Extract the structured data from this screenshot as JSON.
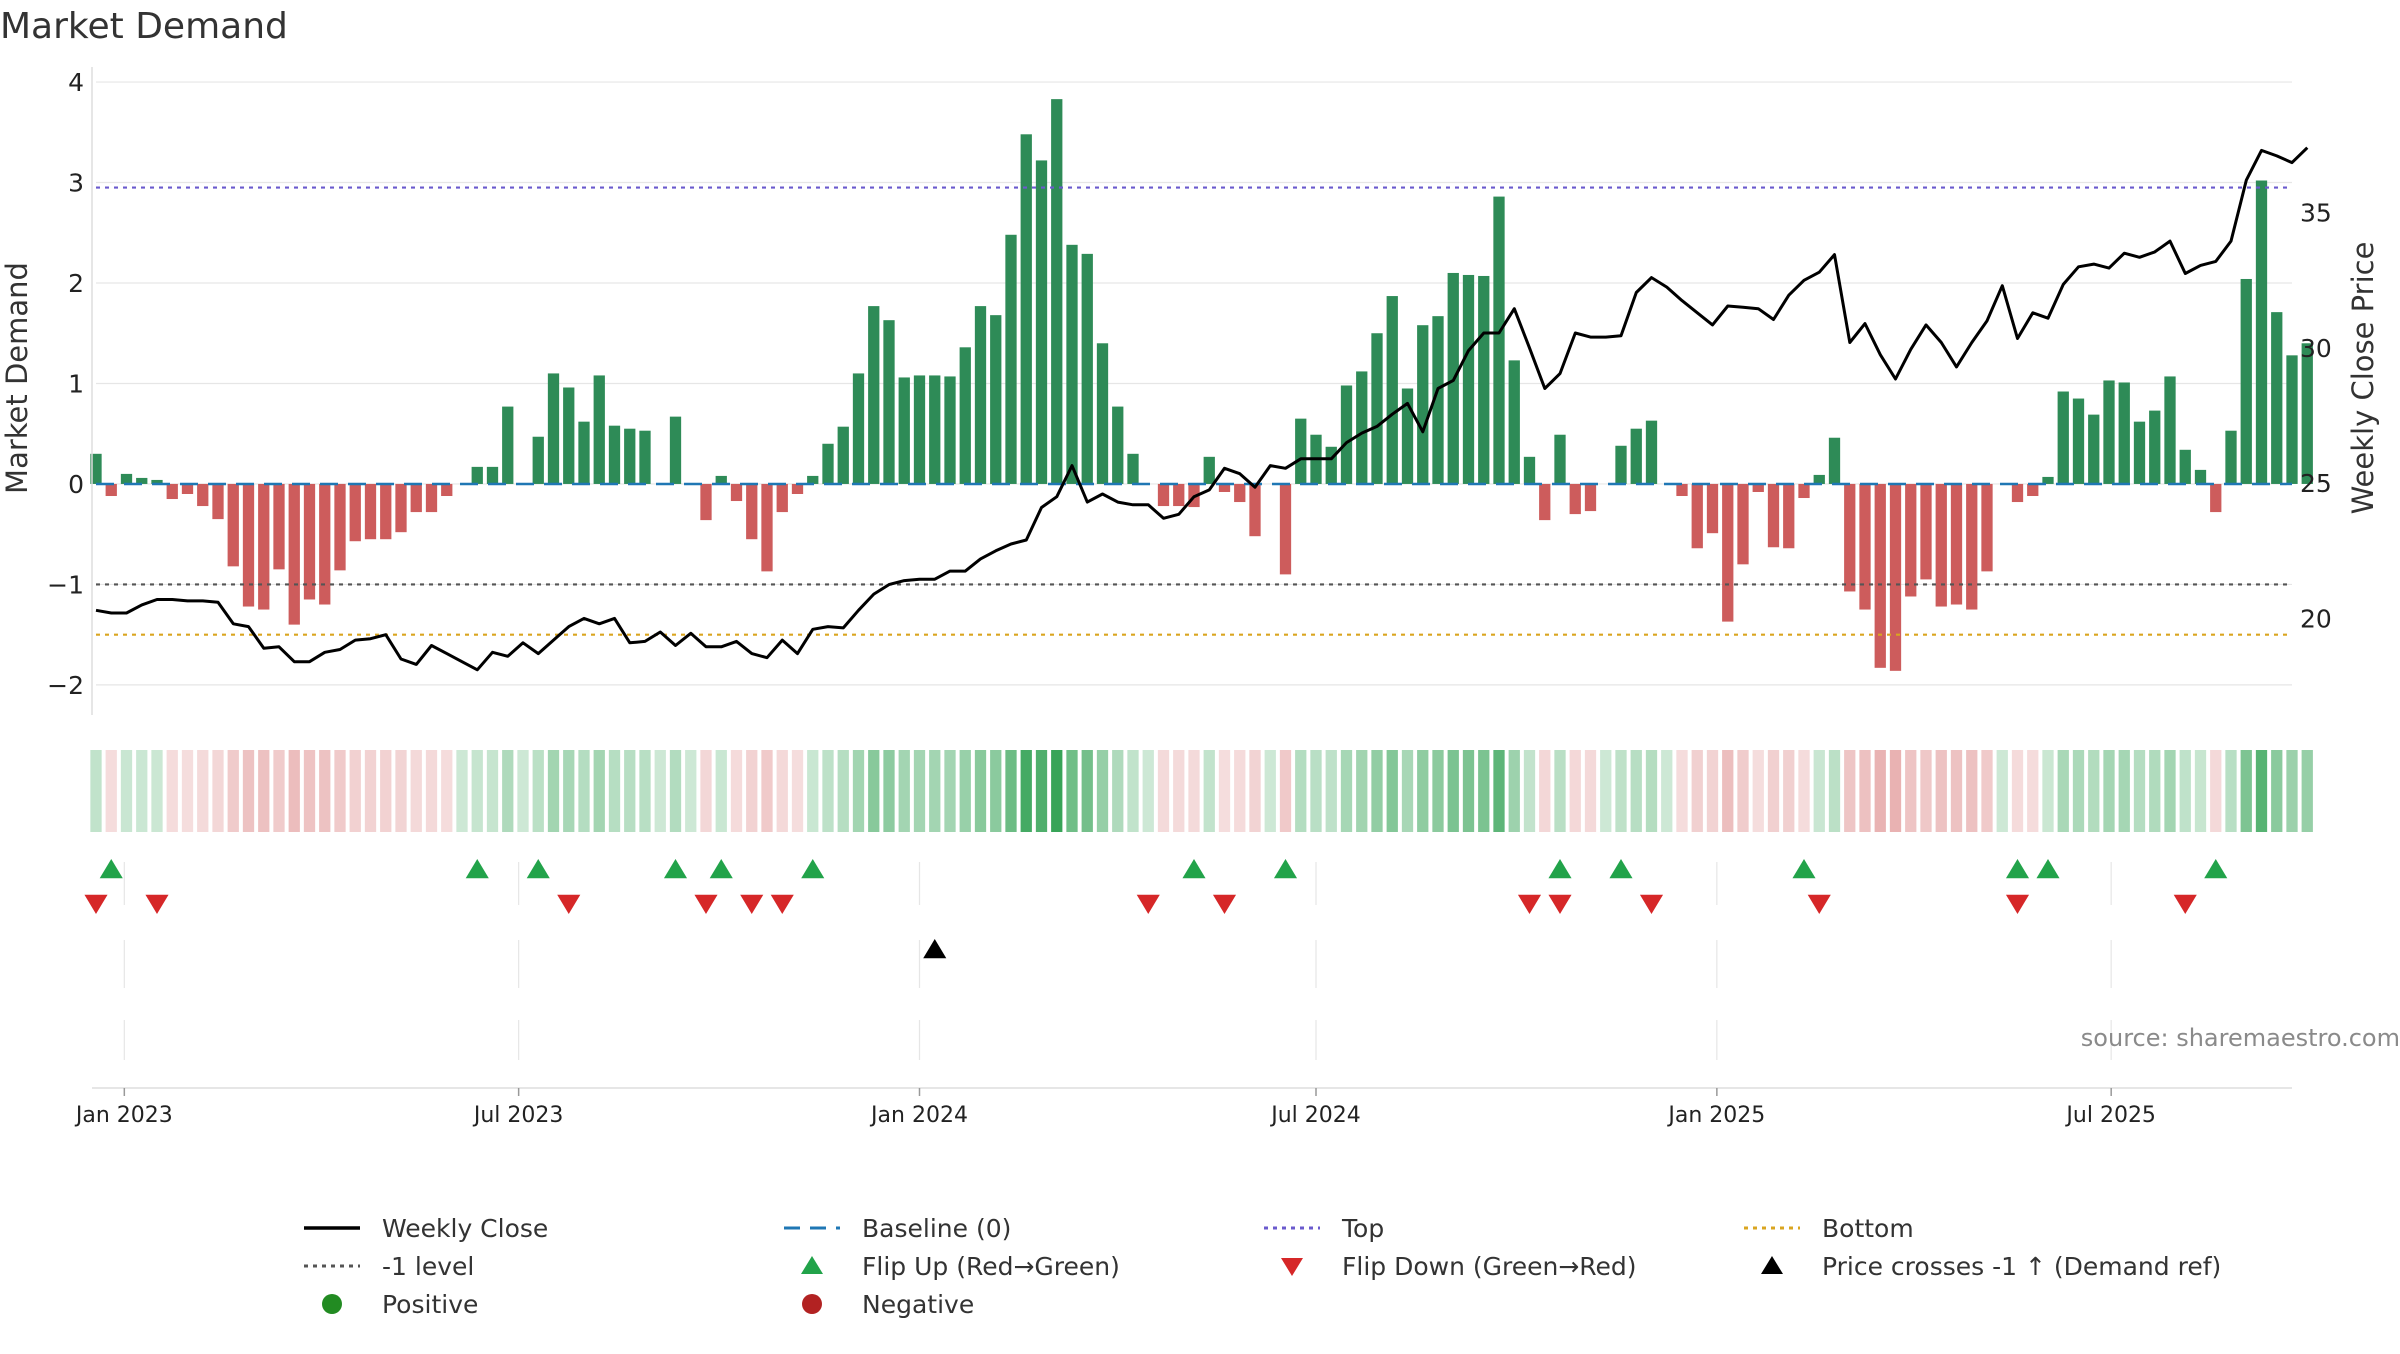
{
  "chart_data": {
    "type": "bar",
    "title": "Market Demand",
    "ylabel": "Market Demand",
    "y2label": "Weekly Close Price",
    "ylim": [
      -2.2,
      4.1
    ],
    "y2lim": [
      16.8,
      40.2
    ],
    "yticks": [
      4,
      3,
      2,
      1,
      0,
      -1,
      -2
    ],
    "ytick_labels": [
      "4",
      "3",
      "2",
      "1",
      "0",
      "−1",
      "−2"
    ],
    "y2ticks": [
      35,
      30,
      25,
      20
    ],
    "y2tick_labels": [
      "35",
      "30",
      "25",
      "20"
    ],
    "top_level": 2.95,
    "bottom_level": -1.5,
    "ref_level": -1,
    "x_start": "2022-12-19",
    "x_end": "2025-09-22",
    "xticks": [
      "2023-01-01",
      "2023-07-01",
      "2024-01-01",
      "2024-07-01",
      "2025-01-01",
      "2025-07-01"
    ],
    "xtick_labels": [
      "Jan 2023",
      "Jul 2023",
      "Jan 2024",
      "Jul 2024",
      "Jan 2025",
      "Jul 2025"
    ],
    "start_date": "2022-12-19",
    "demand": [
      0.3,
      -0.12,
      0.1,
      0.06,
      0.04,
      -0.15,
      -0.1,
      -0.22,
      -0.35,
      -0.82,
      -1.22,
      -1.25,
      -0.85,
      -1.4,
      -1.15,
      -1.2,
      -0.86,
      -0.57,
      -0.55,
      -0.55,
      -0.48,
      -0.28,
      -0.28,
      -0.12,
      0,
      0.17,
      0.17,
      0.77,
      0,
      0.47,
      1.1,
      0.96,
      0.62,
      1.08,
      0.58,
      0.55,
      0.53,
      0,
      0.67,
      0,
      -0.36,
      0.08,
      -0.17,
      -0.55,
      -0.87,
      -0.28,
      -0.1,
      0.08,
      0.4,
      0.57,
      1.1,
      1.77,
      1.63,
      1.06,
      1.08,
      1.08,
      1.07,
      1.36,
      1.77,
      1.68,
      2.48,
      3.48,
      3.22,
      3.83,
      2.38,
      2.29,
      1.4,
      0.77,
      0.3,
      0,
      -0.22,
      -0.22,
      -0.23,
      0.27,
      -0.08,
      -0.18,
      -0.52,
      0,
      -0.9,
      0.65,
      0.49,
      0.37,
      0.98,
      1.12,
      1.5,
      1.87,
      0.95,
      1.58,
      1.67,
      2.1,
      2.08,
      2.07,
      2.86,
      1.23,
      0.27,
      -0.36,
      0.49,
      -0.3,
      -0.27,
      0,
      0.38,
      0.55,
      0.63,
      0,
      -0.12,
      -0.64,
      -0.49,
      -1.37,
      -0.8,
      -0.08,
      -0.63,
      -0.64,
      -0.14,
      0.09,
      0.46,
      -1.07,
      -1.25,
      -1.83,
      -1.86,
      -1.12,
      -0.95,
      -1.22,
      -1.2,
      -1.25,
      -0.87,
      0,
      -0.18,
      -0.12,
      0.07,
      0.92,
      0.85,
      0.69,
      1.03,
      1.01,
      0.62,
      0.73,
      1.07,
      0.34,
      0.14,
      -0.28,
      0.53,
      2.04,
      3.02,
      1.71,
      1.28,
      1.4
    ],
    "close": [
      20.3,
      20.2,
      20.2,
      20.5,
      20.7,
      20.7,
      20.65,
      20.65,
      20.6,
      19.8,
      19.7,
      18.9,
      18.95,
      18.4,
      18.4,
      18.75,
      18.85,
      19.2,
      19.25,
      19.4,
      18.5,
      18.3,
      19.0,
      18.7,
      18.4,
      18.1,
      18.75,
      18.6,
      19.1,
      18.7,
      19.2,
      19.7,
      20.0,
      19.8,
      20.0,
      19.1,
      19.15,
      19.5,
      19.0,
      19.45,
      18.95,
      18.95,
      19.15,
      18.7,
      18.55,
      19.2,
      18.7,
      19.6,
      19.7,
      19.65,
      20.3,
      20.9,
      21.25,
      21.4,
      21.45,
      21.45,
      21.75,
      21.75,
      22.2,
      22.5,
      22.75,
      22.9,
      24.1,
      24.5,
      25.65,
      24.3,
      24.6,
      24.3,
      24.2,
      24.2,
      23.7,
      23.85,
      24.5,
      24.75,
      25.55,
      25.35,
      24.85,
      25.65,
      25.55,
      25.9,
      25.9,
      25.9,
      26.5,
      26.85,
      27.1,
      27.55,
      27.95,
      26.9,
      28.5,
      28.8,
      29.9,
      30.55,
      30.55,
      31.45,
      30.0,
      28.5,
      29.05,
      30.55,
      30.4,
      30.4,
      30.45,
      32.05,
      32.6,
      32.25,
      31.75,
      31.3,
      30.85,
      31.55,
      31.5,
      31.45,
      31.05,
      31.95,
      32.5,
      32.8,
      33.45,
      30.2,
      30.9,
      29.75,
      28.85,
      29.95,
      30.85,
      30.2,
      29.3,
      30.2,
      31.0,
      32.3,
      30.35,
      31.3,
      31.1,
      32.35,
      33.0,
      33.1,
      32.95,
      33.5,
      33.35,
      33.55,
      33.95,
      32.75,
      33.05,
      33.2,
      33.95,
      36.2,
      37.3,
      37.1,
      36.85,
      37.4
    ],
    "flip_up_weeks": [
      1,
      25,
      29,
      38,
      41,
      47,
      72,
      78,
      96,
      100,
      112,
      126,
      128,
      139
    ],
    "flip_down_weeks": [
      0,
      4,
      31,
      40,
      43,
      45,
      69,
      74,
      94,
      96,
      102,
      113,
      126,
      137
    ],
    "cross_weeks": [
      55
    ],
    "source": "source: sharemaestro.com",
    "legend": {
      "weekly_close": "Weekly Close",
      "baseline": "Baseline (0)",
      "top": "Top",
      "bottom": "Bottom",
      "neg1": "-1 level",
      "flip_up": "Flip Up (Red→Green)",
      "flip_down": "Flip Down (Green→Red)",
      "cross": "Price crosses -1 ↑ (Demand ref)",
      "positive": "Positive",
      "negative": "Negative"
    },
    "colors": {
      "positive": "#2e8b57",
      "negative": "#cd5c5c",
      "close": "#000000",
      "baseline": "#1f77b4",
      "top": "#6a5acd",
      "bottom": "#daa520",
      "neg1": "#555555",
      "flip_up": "#22a34a",
      "flip_down": "#d62728",
      "cross": "#000000",
      "legend_positive": "#228b22",
      "legend_negative": "#b22222"
    }
  }
}
